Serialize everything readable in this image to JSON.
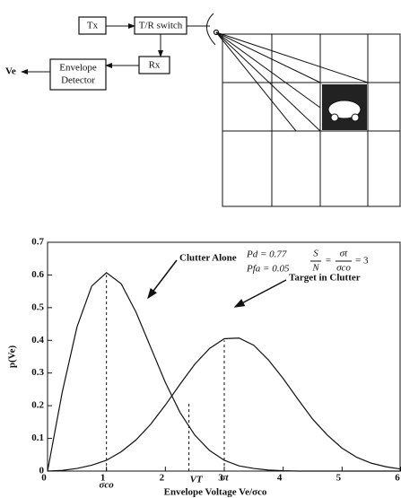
{
  "diagram": {
    "tx": "Tx",
    "switch": "T/R switch",
    "rx": "Rx",
    "detector": [
      "Envelope",
      "Detector"
    ],
    "output": "Ve"
  },
  "chart_data": {
    "type": "line",
    "xlabel": "Envelope Voltage Ve/σco",
    "ylabel": "p(Ve)",
    "x": [
      0,
      0.25,
      0.5,
      0.75,
      1,
      1.25,
      1.5,
      1.75,
      2,
      2.25,
      2.5,
      2.75,
      3,
      3.25,
      3.5,
      3.75,
      4,
      4.25,
      4.5,
      4.75,
      5,
      5.25,
      5.5,
      5.75,
      6
    ],
    "series": [
      {
        "name": "Clutter Alone",
        "color": "#111111",
        "values": [
          0,
          0.242,
          0.441,
          0.566,
          0.607,
          0.573,
          0.487,
          0.379,
          0.271,
          0.179,
          0.11,
          0.063,
          0.033,
          0.016,
          0.008,
          0.003,
          0.001,
          0,
          0,
          0,
          0,
          0,
          0,
          0,
          0
        ]
      },
      {
        "name": "Target in Clutter",
        "color": "#111111",
        "values": [
          0,
          0.002,
          0.008,
          0.018,
          0.033,
          0.059,
          0.095,
          0.143,
          0.202,
          0.266,
          0.327,
          0.375,
          0.405,
          0.407,
          0.385,
          0.34,
          0.283,
          0.22,
          0.159,
          0.11,
          0.07,
          0.042,
          0.024,
          0.013,
          0.006
        ]
      }
    ],
    "xlim": [
      0,
      6
    ],
    "ylim": [
      0,
      0.7
    ],
    "xticks": [
      0,
      1,
      2,
      3,
      4,
      5,
      6
    ],
    "yticks": [
      0,
      0.1,
      0.2,
      0.3,
      0.4,
      0.5,
      0.6,
      0.7
    ],
    "markers": [
      {
        "label": "σco",
        "x": 1,
        "y": 0.6
      },
      {
        "label": "VT",
        "x": 2.4,
        "y": 0.21
      },
      {
        "label": "σt",
        "x": 3,
        "y": 0.4
      }
    ],
    "pd": "Pd = 0.77",
    "pfa": "Pfa = 0.05",
    "snr": {
      "s": "S",
      "n": "N",
      "eq": "=",
      "num": "σt",
      "den": "σco",
      "rhs": "= 3"
    }
  }
}
